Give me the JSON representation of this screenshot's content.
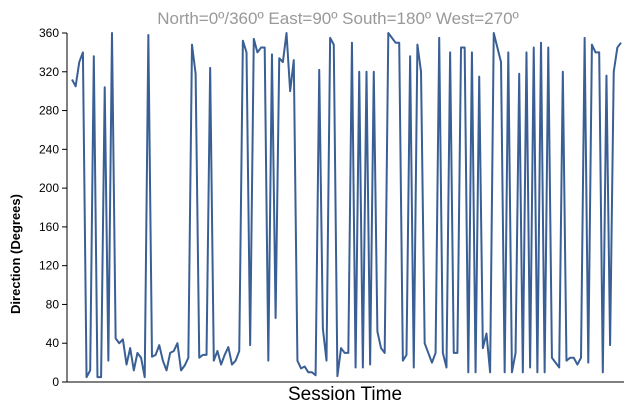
{
  "chart_data": {
    "type": "line",
    "subtitle": "North=0º/360º   East=90º   South=180º   West=270º",
    "xlabel": "Session Time",
    "ylabel": "Direction (Degrees)",
    "ylim": [
      0,
      360
    ],
    "yticks": [
      0,
      40,
      80,
      120,
      160,
      200,
      240,
      280,
      320,
      360
    ],
    "grid": false,
    "legend": "none",
    "series": [
      {
        "color": "#3a5f95",
        "values": [
          312,
          305,
          330,
          340,
          5,
          12,
          336,
          5,
          5,
          304,
          22,
          360,
          45,
          40,
          44,
          18,
          35,
          12,
          30,
          25,
          5,
          358,
          26,
          28,
          38,
          22,
          12,
          30,
          32,
          40,
          12,
          17,
          25,
          348,
          318,
          25,
          28,
          28,
          324,
          22,
          32,
          18,
          28,
          36,
          18,
          22,
          32,
          352,
          340,
          38,
          354,
          340,
          345,
          345,
          22,
          338,
          66,
          334,
          330,
          360,
          300,
          332,
          22,
          14,
          16,
          10,
          10,
          7,
          322,
          55,
          22,
          355,
          348,
          6,
          35,
          30,
          30,
          350,
          15,
          320,
          15,
          320,
          18,
          320,
          52,
          35,
          30,
          360,
          355,
          350,
          350,
          22,
          28,
          336,
          15,
          348,
          320,
          40,
          30,
          20,
          30,
          355,
          30,
          15,
          340,
          30,
          30,
          345,
          345,
          10,
          340,
          10,
          315,
          35,
          50,
          10,
          360,
          345,
          330,
          10,
          340,
          10,
          30,
          318,
          10,
          340,
          15,
          345,
          10,
          350,
          10,
          345,
          25,
          20,
          15,
          320,
          22,
          25,
          25,
          18,
          25,
          355,
          20,
          348,
          340,
          340,
          10,
          316,
          38,
          320,
          345,
          350
        ]
      }
    ]
  }
}
